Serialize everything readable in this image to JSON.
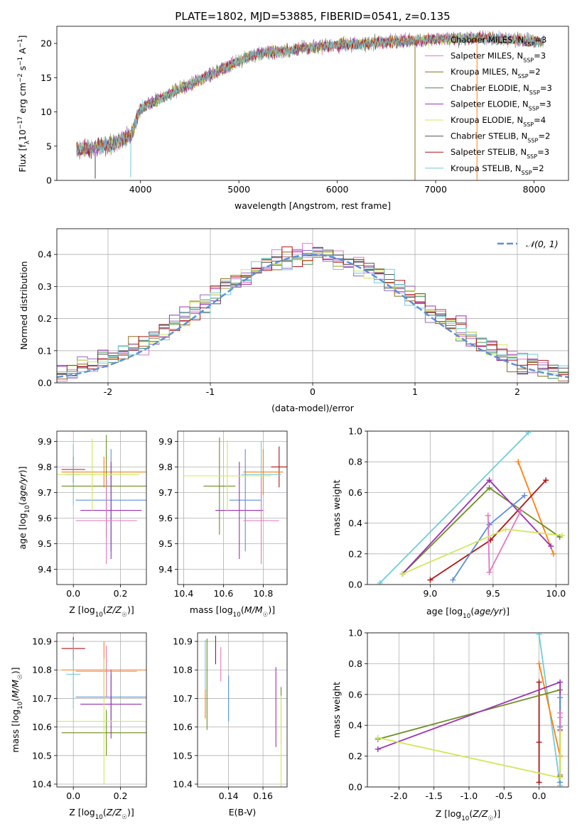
{
  "suptitle": "PLATE=1802, MJD=53885, FIBERID=0541, z=0.135",
  "colors": {
    "Chabrier MILES": "#9467bd",
    "Salpeter MILES": "#e377c2",
    "Kroupa MILES": "#8c6d1f",
    "Chabrier ELODIE": "#4c8c5a",
    "Salpeter ELODIE": "#9b30b4",
    "Kroupa ELODIE": "#cfe85a",
    "Chabrier STELIB": "#555555",
    "Salpeter STELIB": "#b01515",
    "Kroupa STELIB": "#72ccd6",
    "gauss": "#5b8fd9",
    "extra1": "#ff7f0e",
    "extra2": "#6b8e23"
  },
  "chart_data": [
    {
      "type": "line",
      "id": "spectrum",
      "xlabel": "wavelength [Angstrom, rest frame]",
      "ylabel": "Flux [f_λ10^-17 erg cm^-2 s^-1 A^-1]",
      "xlim": [
        3150,
        8350
      ],
      "ylim": [
        0,
        22.5
      ],
      "xticks": [
        4000,
        5000,
        6000,
        7000,
        8000
      ],
      "yticks": [
        0,
        5,
        10,
        15,
        20
      ],
      "grid": false,
      "legend_position": "top-right",
      "legend": [
        "Chabrier MILES, N_SSP=3",
        "Salpeter MILES, N_SSP=3",
        "Kroupa MILES, N_SSP=2",
        "Chabrier ELODIE, N_SSP=3",
        "Salpeter ELODIE, N_SSP=3",
        "Kroupa ELODIE, N_SSP=4",
        "Chabrier STELIB, N_SSP=2",
        "Salpeter STELIB, N_SSP=3",
        "Kroupa STELIB, N_SSP=2"
      ],
      "continuum": [
        [
          3350,
          4.5
        ],
        [
          3500,
          4.6
        ],
        [
          3700,
          5.2
        ],
        [
          3900,
          6.5
        ],
        [
          4000,
          10.5
        ],
        [
          4200,
          12.0
        ],
        [
          4500,
          14.0
        ],
        [
          4800,
          16.0
        ],
        [
          5000,
          17.5
        ],
        [
          5200,
          18.5
        ],
        [
          5500,
          19.0
        ],
        [
          5800,
          19.5
        ],
        [
          6000,
          19.8
        ],
        [
          6300,
          20.0
        ],
        [
          6600,
          20.3
        ],
        [
          7000,
          20.6
        ],
        [
          7400,
          20.8
        ],
        [
          7800,
          20.5
        ],
        [
          8100,
          20.3
        ]
      ],
      "dips": [
        [
          3540,
          0.4
        ],
        [
          3900,
          0.5
        ],
        [
          6790,
          0.0
        ],
        [
          7420,
          0.0
        ]
      ]
    },
    {
      "type": "histogram",
      "id": "residuals",
      "xlabel": "(data-model)/error",
      "ylabel": "Normed distribution",
      "xlim": [
        -2.5,
        2.5
      ],
      "ylim": [
        0,
        0.48
      ],
      "xticks": [
        -2,
        -1,
        0,
        1,
        2
      ],
      "yticks": [
        0.0,
        0.1,
        0.2,
        0.3,
        0.4
      ],
      "grid": true,
      "legend_position": "top-right",
      "legend": [
        "𝒩(0, 1)"
      ],
      "bin_width": 0.1,
      "bin_start": -2.5
    },
    {
      "type": "scatter",
      "id": "z-age",
      "xlabel": "Z [log10(Z/Z☉)]",
      "ylabel": "age  [log10(age/yr)]",
      "xlim": [
        -0.07,
        0.31
      ],
      "ylim": [
        9.34,
        9.94
      ],
      "xticks": [
        0.0,
        0.2
      ],
      "yticks": [
        9.4,
        9.5,
        9.6,
        9.7,
        9.8,
        9.9
      ],
      "grid": true,
      "points": [
        {
          "x": 0.0,
          "xerr": 0.05,
          "y": 9.79,
          "yerr": 0.05,
          "color": "Salpeter STELIB"
        },
        {
          "x": 0.13,
          "xerr": 0.18,
          "y": 9.78,
          "yerr": 0.06,
          "color": "extra1"
        },
        {
          "x": 0.0,
          "xerr": 0.03,
          "y": 9.77,
          "yerr": 0.12,
          "color": "Kroupa STELIB"
        },
        {
          "x": 0.14,
          "xerr": 0.19,
          "y": 9.725,
          "yerr": 0.2,
          "color": "extra2"
        },
        {
          "x": 0.16,
          "xerr": 0.15,
          "y": 9.67,
          "yerr": 0.2,
          "color": "gauss"
        },
        {
          "x": 0.16,
          "xerr": 0.13,
          "y": 9.63,
          "yerr": 0.19,
          "color": "Salpeter ELODIE"
        },
        {
          "x": 0.14,
          "xerr": 0.13,
          "y": 9.59,
          "yerr": 0.17,
          "color": "Salpeter MILES"
        },
        {
          "x": 0.08,
          "xerr": 0.2,
          "y": 9.77,
          "yerr": 0.14,
          "color": "Kroupa ELODIE"
        }
      ]
    },
    {
      "type": "scatter",
      "id": "mass-age",
      "xlabel": "mass [log10(M/M☉)]",
      "ylabel": "",
      "xlim": [
        10.37,
        10.92
      ],
      "ylim": [
        9.34,
        9.94
      ],
      "xticks": [
        10.4,
        10.6,
        10.8
      ],
      "yticks": [
        9.4,
        9.5,
        9.6,
        9.7,
        9.8,
        9.9
      ],
      "grid": true,
      "points": [
        {
          "x": 10.88,
          "xerr": 0.04,
          "y": 9.8,
          "yerr": 0.08,
          "color": "Salpeter STELIB"
        },
        {
          "x": 10.8,
          "xerr": 0.1,
          "y": 9.78,
          "yerr": 0.09,
          "color": "extra1"
        },
        {
          "x": 10.79,
          "xerr": 0.1,
          "y": 9.77,
          "yerr": 0.13,
          "color": "Kroupa STELIB"
        },
        {
          "x": 10.58,
          "xerr": 0.08,
          "y": 9.725,
          "yerr": 0.19,
          "color": "extra2"
        },
        {
          "x": 10.71,
          "xerr": 0.08,
          "y": 9.67,
          "yerr": 0.2,
          "color": "gauss"
        },
        {
          "x": 10.68,
          "xerr": 0.12,
          "y": 9.63,
          "yerr": 0.19,
          "color": "Salpeter ELODIE"
        },
        {
          "x": 10.79,
          "xerr": 0.09,
          "y": 9.59,
          "yerr": 0.17,
          "color": "Salpeter MILES"
        },
        {
          "x": 10.62,
          "xerr": 0.22,
          "y": 9.765,
          "yerr": 0.14,
          "color": "Kroupa ELODIE"
        }
      ]
    },
    {
      "type": "line",
      "id": "age-weight",
      "xlabel": "age  [log10(age/yr)]",
      "ylabel": "mass weight",
      "xlim": [
        8.5,
        10.1
      ],
      "ylim": [
        0,
        1.0
      ],
      "xticks": [
        9.0,
        9.5,
        10.0
      ],
      "yticks": [
        0.0,
        0.2,
        0.4,
        0.6,
        0.8,
        1.0
      ],
      "grid": true,
      "series": [
        {
          "color": "Kroupa STELIB",
          "x": [
            8.6,
            9.78
          ],
          "y": [
            0.01,
            0.99
          ]
        },
        {
          "color": "extra1",
          "x": [
            9.7,
            9.98
          ],
          "y": [
            0.8,
            0.2
          ]
        },
        {
          "color": "Salpeter STELIB",
          "x": [
            9.0,
            9.48,
            9.92
          ],
          "y": [
            0.03,
            0.29,
            0.68
          ]
        },
        {
          "color": "extra2",
          "x": [
            8.78,
            9.47,
            10.03
          ],
          "y": [
            0.07,
            0.63,
            0.31
          ]
        },
        {
          "color": "Salpeter ELODIE",
          "x": [
            8.78,
            9.47,
            9.96
          ],
          "y": [
            0.07,
            0.68,
            0.25
          ]
        },
        {
          "color": "gauss",
          "x": [
            9.18,
            9.47,
            9.75
          ],
          "y": [
            0.03,
            0.39,
            0.58
          ]
        },
        {
          "color": "Salpeter MILES",
          "x": [
            9.46,
            9.47,
            9.72
          ],
          "y": [
            0.45,
            0.08,
            0.48
          ]
        },
        {
          "color": "Kroupa ELODIE",
          "x": [
            8.78,
            9.6,
            10.05
          ],
          "y": [
            0.07,
            0.36,
            0.32
          ]
        }
      ]
    },
    {
      "type": "scatter",
      "id": "z-mass",
      "xlabel": "Z [log10(Z/Z☉)]",
      "ylabel": "mass [log10(M/M☉)]",
      "xlim": [
        -0.07,
        0.31
      ],
      "ylim": [
        10.39,
        10.93
      ],
      "xticks": [
        0.0,
        0.2
      ],
      "yticks": [
        10.4,
        10.5,
        10.6,
        10.7,
        10.8,
        10.9
      ],
      "grid": true,
      "points": [
        {
          "x": 0.0,
          "xerr": 0.05,
          "y": 10.875,
          "yerr": 0.04,
          "color": "Salpeter STELIB"
        },
        {
          "x": 0.13,
          "xerr": 0.18,
          "y": 10.8,
          "yerr": 0.1,
          "color": "extra1"
        },
        {
          "x": 0.0,
          "xerr": 0.03,
          "y": 10.785,
          "yerr": 0.12,
          "color": "Kroupa STELIB"
        },
        {
          "x": 0.14,
          "xerr": 0.19,
          "y": 10.58,
          "yerr": 0.08,
          "color": "extra2"
        },
        {
          "x": 0.16,
          "xerr": 0.15,
          "y": 10.705,
          "yerr": 0.08,
          "color": "gauss"
        },
        {
          "x": 0.16,
          "xerr": 0.13,
          "y": 10.68,
          "yerr": 0.12,
          "color": "Salpeter ELODIE"
        },
        {
          "x": 0.14,
          "xerr": 0.13,
          "y": 10.795,
          "yerr": 0.09,
          "color": "Salpeter MILES"
        },
        {
          "x": 0.13,
          "xerr": 0.2,
          "y": 10.62,
          "yerr": 0.22,
          "color": "Kroupa ELODIE"
        }
      ]
    },
    {
      "type": "scatter",
      "id": "ebv-mass",
      "xlabel": "E(B-V)",
      "ylabel": "",
      "xlim": [
        0.122,
        0.174
      ],
      "ylim": [
        10.39,
        10.93
      ],
      "xticks": [
        0.14,
        0.16
      ],
      "yticks": [
        10.4,
        10.5,
        10.6,
        10.7,
        10.8,
        10.9
      ],
      "grid": true,
      "points": [
        {
          "x": 0.1265,
          "y": 10.815,
          "yerr": 0.09,
          "color": "Kroupa STELIB"
        },
        {
          "x": 0.1265,
          "y": 10.68,
          "yerr": 0.05,
          "color": "extra1"
        },
        {
          "x": 0.1275,
          "y": 10.75,
          "yerr": 0.16,
          "color": "extra2"
        },
        {
          "x": 0.1325,
          "y": 10.87,
          "yerr": 0.05,
          "color": "Salpeter STELIB"
        },
        {
          "x": 0.1355,
          "y": 10.82,
          "yerr": 0.06,
          "color": "Salpeter MILES"
        },
        {
          "x": 0.14,
          "y": 10.7,
          "yerr": 0.08,
          "color": "gauss"
        },
        {
          "x": 0.1675,
          "y": 10.67,
          "yerr": 0.14,
          "color": "Salpeter ELODIE"
        },
        {
          "x": 0.1705,
          "y": 10.64,
          "yerr": 0.1,
          "color": "extra2"
        },
        {
          "x": 0.1705,
          "y": 10.55,
          "yerr": 0.16,
          "color": "Kroupa ELODIE"
        }
      ]
    },
    {
      "type": "line",
      "id": "z-weight",
      "xlabel": "Z [log10(Z/Z☉)]",
      "ylabel": "mass weight",
      "xlim": [
        -2.45,
        0.42
      ],
      "ylim": [
        0,
        1.0
      ],
      "xticks": [
        -2.0,
        -1.5,
        -1.0,
        -0.5,
        0.0
      ],
      "yticks": [
        0.0,
        0.2,
        0.4,
        0.6,
        0.8,
        1.0
      ],
      "grid": true,
      "series": [
        {
          "color": "Kroupa STELIB",
          "x": [
            0.0,
            0.3
          ],
          "y": [
            0.99,
            0.01
          ]
        },
        {
          "color": "extra1",
          "x": [
            0.0,
            0.3
          ],
          "y": [
            0.8,
            0.2
          ]
        },
        {
          "color": "Salpeter STELIB",
          "x": [
            0.0,
            0.0,
            0.0
          ],
          "y": [
            0.29,
            0.68,
            0.03
          ]
        },
        {
          "color": "extra2",
          "x": [
            -2.3,
            0.3,
            0.3
          ],
          "y": [
            0.31,
            0.63,
            0.07
          ]
        },
        {
          "color": "Salpeter ELODIE",
          "x": [
            -2.3,
            0.3,
            0.3
          ],
          "y": [
            0.245,
            0.68,
            0.37
          ]
        },
        {
          "color": "gauss",
          "x": [
            0.3,
            0.3,
            0.3
          ],
          "y": [
            0.58,
            0.39,
            0.03
          ]
        },
        {
          "color": "Salpeter MILES",
          "x": [
            0.3,
            0.3,
            0.3
          ],
          "y": [
            0.45,
            0.08,
            0.48
          ]
        },
        {
          "color": "Kroupa ELODIE",
          "x": [
            -2.3,
            0.3,
            0.3
          ],
          "y": [
            0.32,
            0.06,
            0.36
          ]
        }
      ]
    }
  ]
}
